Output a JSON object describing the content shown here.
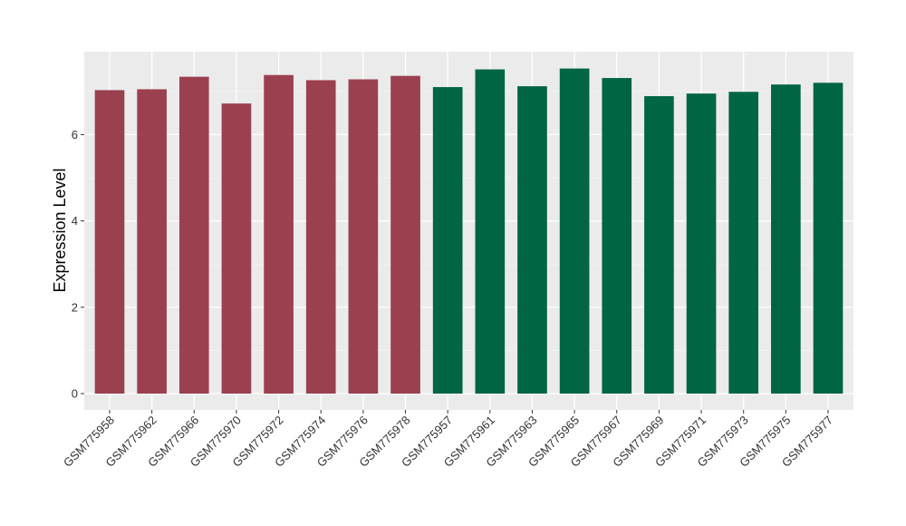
{
  "chart_data": {
    "type": "bar",
    "title": "",
    "xlabel": "",
    "ylabel": "Expression Level",
    "ylim": [
      -0.3,
      7.9
    ],
    "yticks": [
      0,
      2,
      4,
      6
    ],
    "grid": true,
    "panel_background": "#ebebeb",
    "categories": [
      "GSM775958",
      "GSM775962",
      "GSM775966",
      "GSM775970",
      "GSM775972",
      "GSM775974",
      "GSM775976",
      "GSM775978",
      "GSM775957",
      "GSM775961",
      "GSM775963",
      "GSM775965",
      "GSM775967",
      "GSM775969",
      "GSM775971",
      "GSM775973",
      "GSM775975",
      "GSM775977"
    ],
    "values": [
      7.03,
      7.05,
      7.34,
      6.72,
      7.38,
      7.26,
      7.28,
      7.36,
      7.1,
      7.51,
      7.12,
      7.53,
      7.31,
      6.89,
      6.95,
      6.99,
      7.16,
      7.2
    ],
    "groups": [
      0,
      0,
      0,
      0,
      0,
      0,
      0,
      0,
      1,
      1,
      1,
      1,
      1,
      1,
      1,
      1,
      1,
      1
    ],
    "group_colors": [
      "#9b404f",
      "#006543"
    ]
  }
}
